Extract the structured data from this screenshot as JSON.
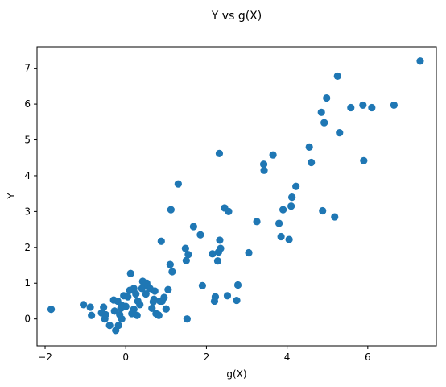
{
  "chart_data": {
    "type": "scatter",
    "title": "Y vs g(X)",
    "xlabel": "g(X)",
    "ylabel": "Y",
    "xlim": [
      -2.2,
      7.7
    ],
    "ylim": [
      -0.75,
      7.6
    ],
    "xticks": [
      -2,
      0,
      2,
      4,
      6
    ],
    "yticks": [
      0,
      1,
      2,
      3,
      4,
      5,
      6,
      7
    ],
    "grid": false,
    "marker_color": "#1f77b4",
    "points": [
      [
        -1.85,
        0.27
      ],
      [
        -1.05,
        0.4
      ],
      [
        -0.88,
        0.33
      ],
      [
        -0.85,
        0.1
      ],
      [
        -0.6,
        0.17
      ],
      [
        -0.55,
        0.33
      ],
      [
        -0.52,
        0.0
      ],
      [
        -0.5,
        0.12
      ],
      [
        -0.4,
        -0.18
      ],
      [
        -0.3,
        0.53
      ],
      [
        -0.28,
        0.22
      ],
      [
        -0.25,
        -0.32
      ],
      [
        -0.2,
        0.5
      ],
      [
        -0.18,
        -0.18
      ],
      [
        -0.15,
        0.12
      ],
      [
        -0.12,
        0.3
      ],
      [
        -0.1,
        0.38
      ],
      [
        -0.1,
        0.0
      ],
      [
        -0.05,
        0.65
      ],
      [
        0.0,
        0.35
      ],
      [
        0.05,
        0.62
      ],
      [
        0.1,
        0.8
      ],
      [
        0.12,
        1.27
      ],
      [
        0.15,
        0.15
      ],
      [
        0.2,
        0.27
      ],
      [
        0.2,
        0.85
      ],
      [
        0.25,
        0.7
      ],
      [
        0.28,
        0.1
      ],
      [
        0.3,
        0.5
      ],
      [
        0.35,
        0.4
      ],
      [
        0.4,
        0.85
      ],
      [
        0.42,
        1.05
      ],
      [
        0.45,
        0.92
      ],
      [
        0.5,
        0.7
      ],
      [
        0.52,
        1.0
      ],
      [
        0.55,
        0.9
      ],
      [
        0.6,
        0.85
      ],
      [
        0.65,
        0.3
      ],
      [
        0.68,
        0.48
      ],
      [
        0.7,
        0.55
      ],
      [
        0.72,
        0.78
      ],
      [
        0.75,
        0.15
      ],
      [
        0.8,
        0.12
      ],
      [
        0.82,
        0.1
      ],
      [
        0.85,
        0.5
      ],
      [
        0.88,
        2.17
      ],
      [
        0.9,
        0.5
      ],
      [
        0.95,
        0.6
      ],
      [
        1.0,
        0.28
      ],
      [
        1.05,
        0.82
      ],
      [
        1.1,
        1.52
      ],
      [
        1.12,
        3.05
      ],
      [
        1.15,
        1.32
      ],
      [
        1.3,
        3.77
      ],
      [
        1.48,
        1.97
      ],
      [
        1.5,
        1.63
      ],
      [
        1.52,
        0.0
      ],
      [
        1.55,
        1.8
      ],
      [
        1.68,
        2.58
      ],
      [
        1.85,
        2.35
      ],
      [
        1.9,
        0.93
      ],
      [
        2.15,
        1.82
      ],
      [
        2.2,
        0.5
      ],
      [
        2.22,
        0.62
      ],
      [
        2.28,
        1.62
      ],
      [
        2.3,
        1.87
      ],
      [
        2.32,
        4.62
      ],
      [
        2.33,
        2.2
      ],
      [
        2.35,
        1.97
      ],
      [
        2.45,
        3.1
      ],
      [
        2.52,
        0.65
      ],
      [
        2.55,
        3.0
      ],
      [
        2.75,
        0.52
      ],
      [
        2.78,
        0.95
      ],
      [
        3.05,
        1.85
      ],
      [
        3.25,
        2.72
      ],
      [
        3.42,
        4.32
      ],
      [
        3.43,
        4.15
      ],
      [
        3.65,
        4.58
      ],
      [
        3.8,
        2.67
      ],
      [
        3.85,
        2.3
      ],
      [
        3.9,
        3.05
      ],
      [
        4.05,
        2.22
      ],
      [
        4.1,
        3.15
      ],
      [
        4.12,
        3.4
      ],
      [
        4.22,
        3.7
      ],
      [
        4.55,
        4.8
      ],
      [
        4.6,
        4.37
      ],
      [
        4.85,
        5.77
      ],
      [
        4.88,
        3.02
      ],
      [
        4.92,
        5.48
      ],
      [
        4.98,
        6.17
      ],
      [
        5.18,
        2.85
      ],
      [
        5.25,
        6.78
      ],
      [
        5.3,
        5.2
      ],
      [
        5.58,
        5.9
      ],
      [
        5.88,
        5.97
      ],
      [
        5.9,
        4.42
      ],
      [
        6.1,
        5.9
      ],
      [
        6.65,
        5.97
      ],
      [
        7.3,
        7.2
      ]
    ]
  }
}
